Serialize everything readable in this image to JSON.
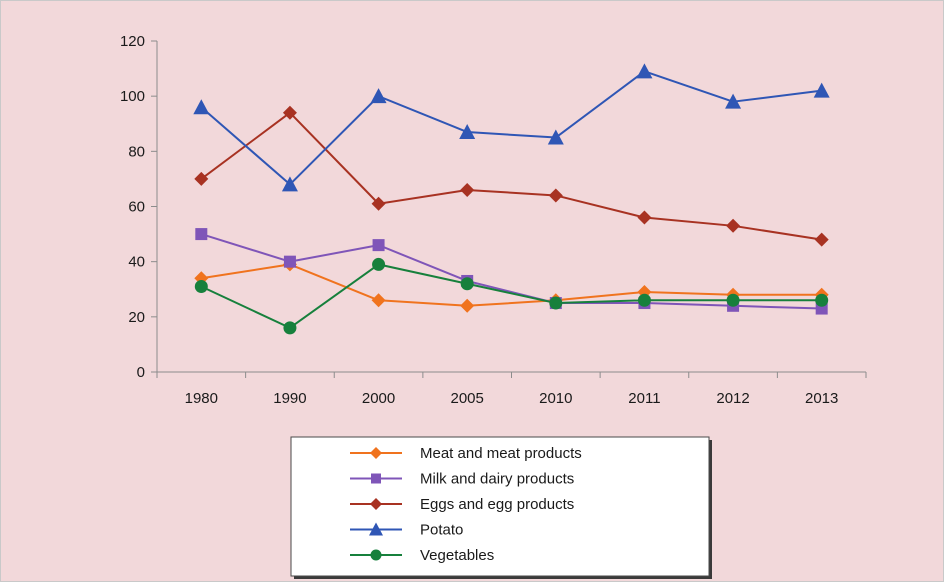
{
  "chart_data": {
    "type": "line",
    "categories": [
      "1980",
      "1990",
      "2000",
      "2005",
      "2010",
      "2011",
      "2012",
      "2013"
    ],
    "ylim": [
      0,
      120
    ],
    "yticks": [
      0,
      20,
      40,
      60,
      80,
      100,
      120
    ],
    "grid": false,
    "legend_position": "bottom",
    "series": [
      {
        "name": "Meat and meat products",
        "color": "#f0731e",
        "marker": "diamond",
        "values": [
          34,
          39,
          26,
          24,
          26,
          29,
          28,
          28
        ]
      },
      {
        "name": "Milk and dairy products",
        "color": "#7f55b8",
        "marker": "square",
        "values": [
          50,
          40,
          46,
          33,
          25,
          25,
          24,
          23
        ]
      },
      {
        "name": "Eggs and egg products",
        "color": "#a83222",
        "marker": "diamond",
        "values": [
          70,
          94,
          61,
          66,
          64,
          56,
          53,
          48
        ]
      },
      {
        "name": "Potato",
        "color": "#2f56b5",
        "marker": "triangle",
        "values": [
          96,
          68,
          100,
          87,
          85,
          109,
          98,
          102
        ]
      },
      {
        "name": "Vegetables",
        "color": "#17803c",
        "marker": "circle",
        "values": [
          31,
          16,
          39,
          32,
          25,
          26,
          26,
          26
        ]
      }
    ]
  }
}
